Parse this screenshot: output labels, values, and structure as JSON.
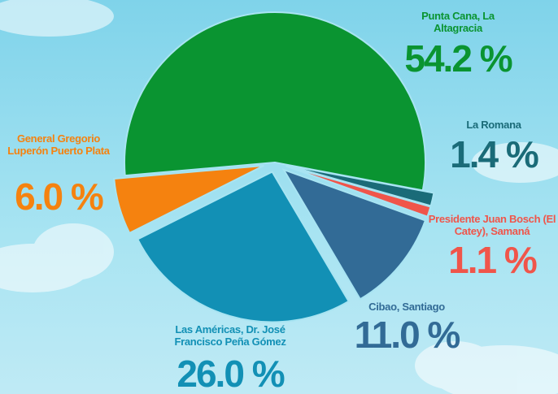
{
  "chart_data": {
    "type": "pie",
    "categories": [
      "Punta Cana, La Altagracia",
      "La Romana",
      "Presidente Juan Bosch (El Catey), Samaná",
      "Cibao, Santiago",
      "Las Américas, Dr. José Francisco Peña Gómez",
      "General Gregorio Luperón Puerto Plata"
    ],
    "values": [
      54.2,
      1.4,
      1.1,
      11.0,
      26.0,
      6.0
    ],
    "value_labels": [
      "54.2 %",
      "1.4 %",
      "1.1 %",
      "11.0 %",
      "26.0 %",
      "6.0 %"
    ],
    "colors": [
      "#0a9431",
      "#1a6b78",
      "#f0554a",
      "#326b96",
      "#1290b5",
      "#f5820f"
    ]
  }
}
